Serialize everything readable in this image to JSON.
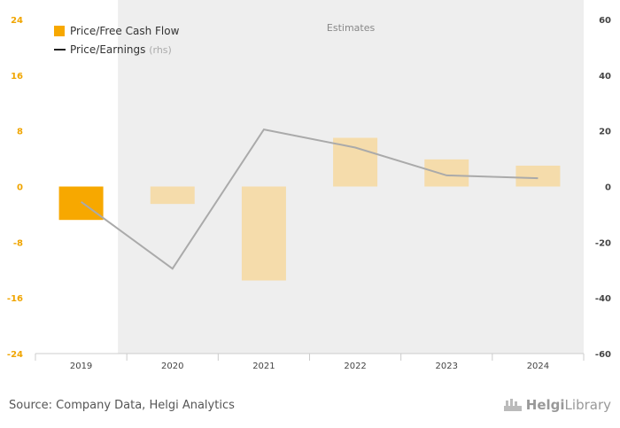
{
  "chart_data": {
    "type": "bar+line",
    "categories": [
      "2019",
      "2020",
      "2021",
      "2022",
      "2023",
      "2024"
    ],
    "estimates_label": "Estimates",
    "estimates_from": "2020",
    "series": [
      {
        "name": "Price/Free Cash Flow",
        "type": "bar",
        "axis": "left",
        "values": [
          -4.8,
          -2.5,
          -13.5,
          7.0,
          3.9,
          3.0
        ],
        "colors": [
          "#f7a800",
          "#f5dcab",
          "#f5dcab",
          "#f5dcab",
          "#f5dcab",
          "#f5dcab"
        ]
      },
      {
        "name": "Price/Earnings",
        "name_suffix": "(rhs)",
        "type": "line",
        "axis": "right",
        "values": [
          -5.5,
          -29.5,
          20.5,
          14.0,
          4.0,
          3.0
        ],
        "color": "#aaaaaa"
      }
    ],
    "y_left": {
      "min": -24,
      "max": 24,
      "ticks": [
        "24",
        "16",
        "8",
        "0",
        "-8",
        "-16",
        "-24"
      ]
    },
    "y_right": {
      "min": -60,
      "max": 60,
      "ticks": [
        "60",
        "40",
        "20",
        "0",
        "-20",
        "-40",
        "-60"
      ]
    },
    "legend_position": "top-left"
  },
  "footer": {
    "source": "Source: Company Data, Helgi Analytics",
    "logo_part1": "Helgi",
    "logo_part2": "Library"
  },
  "colors": {
    "accent": "#f7a800",
    "estimate_bar": "#f5dcab",
    "estimate_shade": "#eeeeee",
    "line": "#aaaaaa"
  }
}
